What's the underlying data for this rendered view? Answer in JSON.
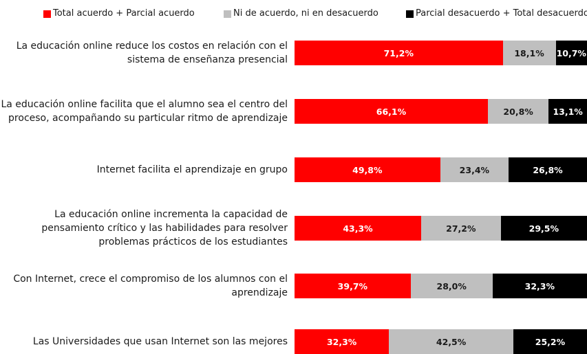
{
  "chart_data": {
    "type": "stacked_bar_horizontal",
    "categories": [
      "La educación online reduce los costos en relación con el sistema de enseñanza presencial",
      "La educación online facilita que el alumno sea el centro del proceso, acompañando su particular ritmo de aprendizaje",
      "Internet facilita el aprendizaje en grupo",
      "La educación online incrementa la capacidad de pensamiento crítico y las habilidades para resolver problemas prácticos de los estudiantes",
      "Con Internet, crece el compromiso de los alumnos con el aprendizaje",
      "Las Universidades que usan Internet son las mejores"
    ],
    "xlim": [
      0,
      100
    ],
    "legend": "top",
    "series": [
      {
        "name": "Total acuerdo + Parcial acuerdo",
        "color": "#ff0000",
        "label_color": "#ffffff",
        "values": [
          71.2,
          66.1,
          49.8,
          43.3,
          39.7,
          32.3
        ],
        "value_labels": [
          "71,2%",
          "66,1%",
          "49,8%",
          "43,3%",
          "39,7%",
          "32,3%"
        ]
      },
      {
        "name": "Ni de acuerdo, ni en desacuerdo",
        "color": "#bfbfbf",
        "label_color": "#1a1a1a",
        "values": [
          18.1,
          20.8,
          23.4,
          27.2,
          28.0,
          42.5
        ],
        "value_labels": [
          "18,1%",
          "20,8%",
          "23,4%",
          "27,2%",
          "28,0%",
          "42,5%"
        ]
      },
      {
        "name": "Parcial desacuerdo + Total desacuerdo",
        "color": "#000000",
        "label_color": "#ffffff",
        "values": [
          10.7,
          13.1,
          26.8,
          29.5,
          32.3,
          25.2
        ],
        "value_labels": [
          "10,7%",
          "13,1%",
          "26,8%",
          "29,5%",
          "32,3%",
          "25,2%"
        ]
      }
    ]
  }
}
